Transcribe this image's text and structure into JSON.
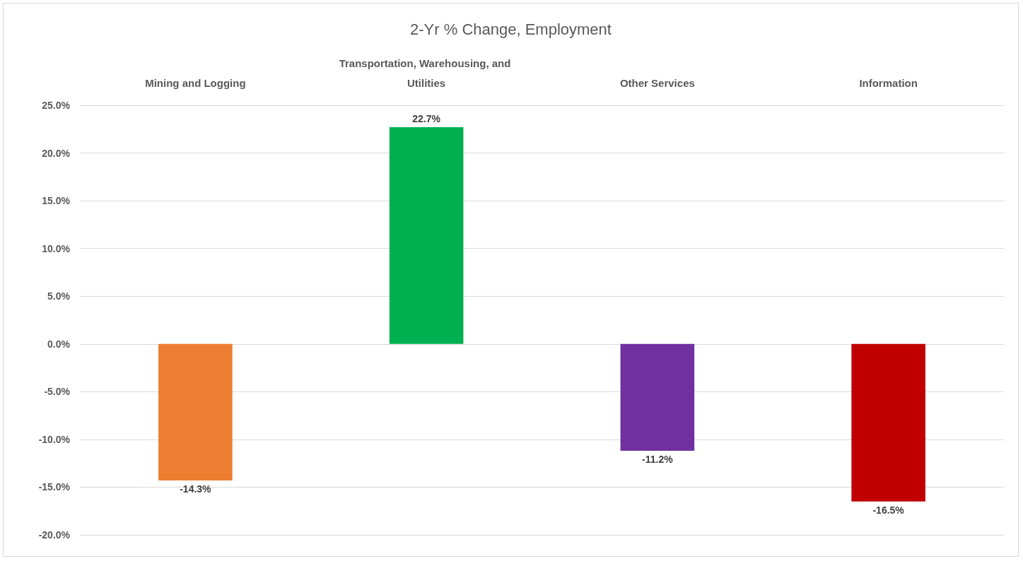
{
  "chart_data": {
    "type": "bar",
    "title": "2-Yr % Change, Employment",
    "categories": [
      "Mining and Logging",
      "Transportation, Warehousing, and Utilities",
      "Other Services",
      "Information"
    ],
    "values": [
      -14.3,
      22.7,
      -11.2,
      -16.5
    ],
    "colors": [
      "#ed7d31",
      "#00b050",
      "#7030a0",
      "#c00000"
    ],
    "value_labels": [
      "-14.3%",
      "22.7%",
      "-11.2%",
      "-16.5%"
    ],
    "ylim": [
      -20,
      25
    ],
    "yticks": [
      {
        "value": -20,
        "label": "-20.0%"
      },
      {
        "value": -15,
        "label": "-15.0%"
      },
      {
        "value": -10,
        "label": "-10.0%"
      },
      {
        "value": -5,
        "label": "-5.0%"
      },
      {
        "value": 0,
        "label": "0.0%"
      },
      {
        "value": 5,
        "label": "5.0%"
      },
      {
        "value": 10,
        "label": "10.0%"
      },
      {
        "value": 15,
        "label": "15.0%"
      },
      {
        "value": 20,
        "label": "20.0%"
      },
      {
        "value": 25,
        "label": "25.0%"
      }
    ],
    "grid": "y"
  }
}
